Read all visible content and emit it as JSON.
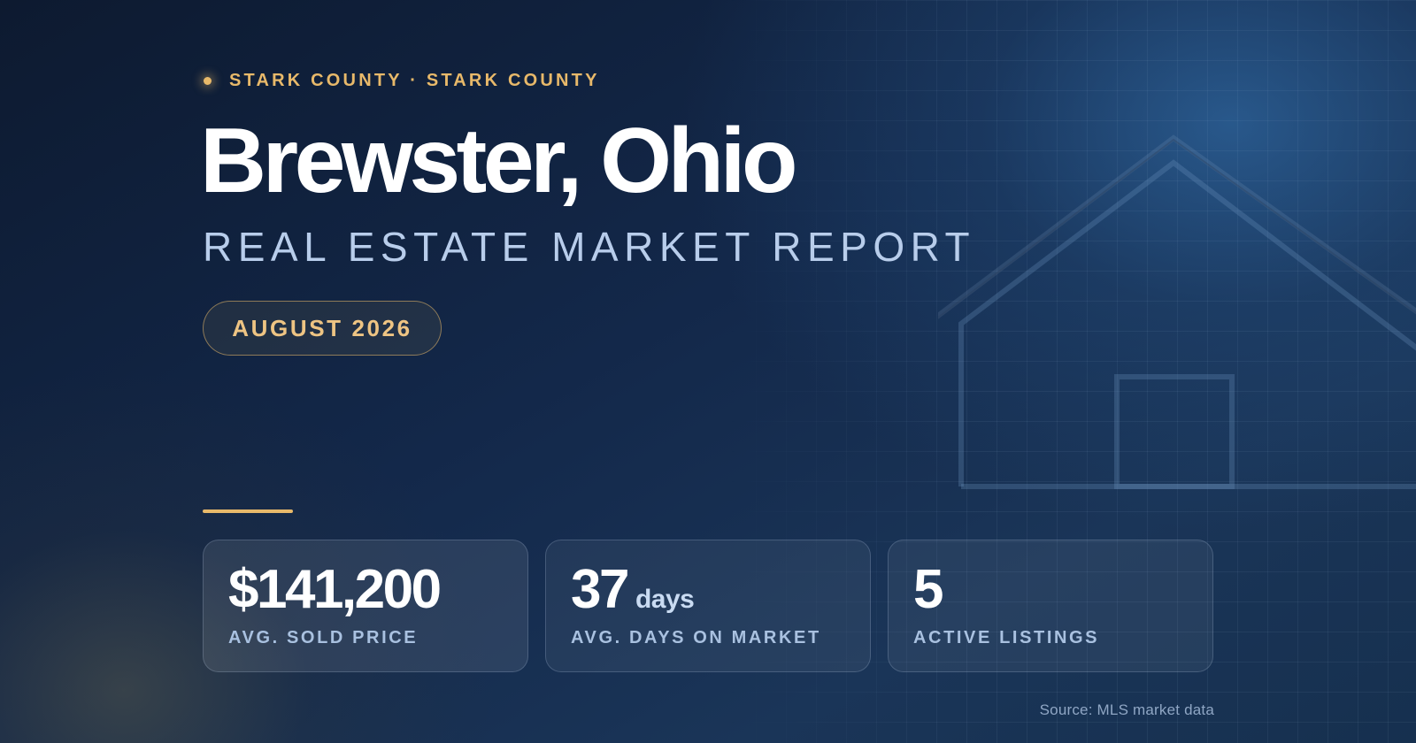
{
  "header": {
    "location_tag": "STARK COUNTY · STARK COUNTY",
    "title": "Brewster, Ohio",
    "subtitle": "REAL ESTATE MARKET REPORT",
    "report_date": "AUGUST 2026"
  },
  "stats": [
    {
      "value": "$141,200",
      "unit": "",
      "label": "AVG. SOLD PRICE"
    },
    {
      "value": "37",
      "unit": "days",
      "label": "AVG. DAYS ON MARKET"
    },
    {
      "value": "5",
      "unit": "",
      "label": "ACTIVE LISTINGS"
    }
  ],
  "footer": {
    "source": "Source: MLS market data"
  },
  "colors": {
    "background": "#13284a",
    "accent_gold": "#e8b96a",
    "subtitle_blue": "#b8cdeb",
    "label_blue": "#a9c1e0"
  },
  "icons": {
    "decoration": "house-outline-icon",
    "bullet": "dot-icon"
  }
}
